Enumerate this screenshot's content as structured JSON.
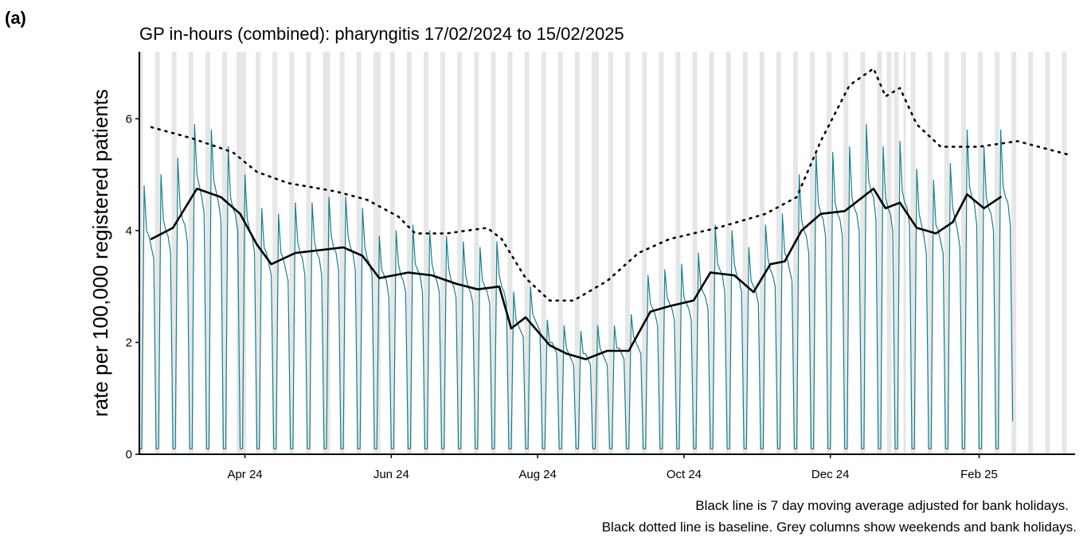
{
  "chart_data": {
    "type": "line",
    "panel_label": "(a)",
    "title": "GP in-hours (combined): pharyngitis 17/02/2024 to 15/02/2025",
    "y_label": "rate per 100,000 registered patients",
    "notes": [
      "Black line is 7 day moving average adjusted for bank holidays.",
      "Black dotted line is baseline. Grey columns show weekends and bank holidays."
    ],
    "xlim": [
      0,
      390
    ],
    "ylim": [
      0,
      7.2
    ],
    "yticks": [
      0,
      2,
      4,
      6
    ],
    "xticks": [
      {
        "value": 44,
        "label": "Apr 24"
      },
      {
        "value": 105,
        "label": "Jun 24"
      },
      {
        "value": 166,
        "label": "Aug 24"
      },
      {
        "value": 227,
        "label": "Oct 24"
      },
      {
        "value": 288,
        "label": "Dec 24"
      },
      {
        "value": 350,
        "label": "Feb 25"
      }
    ],
    "shade_color": "#e6e6e6",
    "shaded_x": [
      0,
      1,
      7,
      8,
      14,
      15,
      21,
      22,
      28,
      29,
      35,
      36,
      41,
      42,
      43,
      44,
      49,
      50,
      56,
      57,
      63,
      64,
      70,
      71,
      77,
      78,
      79,
      84,
      85,
      91,
      92,
      98,
      99,
      100,
      105,
      106,
      112,
      113,
      119,
      120,
      126,
      127,
      133,
      134,
      140,
      141,
      147,
      148,
      154,
      155,
      161,
      162,
      168,
      169,
      175,
      176,
      182,
      183,
      189,
      190,
      191,
      196,
      197,
      203,
      204,
      210,
      211,
      217,
      218,
      224,
      225,
      231,
      232,
      238,
      239,
      245,
      246,
      252,
      253,
      259,
      260,
      266,
      267,
      273,
      274,
      280,
      281,
      287,
      288,
      294,
      295,
      301,
      302,
      308,
      309,
      312,
      313,
      315,
      316,
      319,
      322,
      323,
      329,
      330,
      336,
      337,
      343,
      344,
      350,
      351,
      357,
      358,
      364,
      365,
      371,
      372,
      378,
      379,
      385,
      386
    ],
    "series": [
      {
        "color": "#137f93",
        "style": "solid",
        "x": [
          0,
          1,
          2,
          3,
          4,
          5,
          6,
          7,
          8,
          9,
          10,
          11,
          12,
          13,
          14,
          15,
          16,
          17,
          18,
          19,
          20,
          21,
          22,
          23,
          24,
          25,
          26,
          27,
          28,
          29,
          30,
          31,
          32,
          33,
          34,
          35,
          36,
          37,
          38,
          39,
          40,
          41,
          42,
          43,
          44,
          45,
          46,
          47,
          48,
          49,
          50,
          51,
          52,
          53,
          54,
          55,
          56,
          57,
          58,
          59,
          60,
          61,
          62,
          63,
          64,
          65,
          66,
          67,
          68,
          69,
          70,
          71,
          72,
          73,
          74,
          75,
          76,
          77,
          78,
          79,
          80,
          81,
          82,
          83,
          84,
          85,
          86,
          87,
          88,
          89,
          90,
          91,
          92,
          93,
          94,
          95,
          96,
          97,
          98,
          99,
          100,
          101,
          102,
          103,
          104,
          105,
          106,
          107,
          108,
          109,
          110,
          111,
          112,
          113,
          114,
          115,
          116,
          117,
          118,
          119,
          120,
          121,
          122,
          123,
          124,
          125,
          126,
          127,
          128,
          129,
          130,
          131,
          132,
          133,
          134,
          135,
          136,
          137,
          138,
          139,
          140,
          141,
          142,
          143,
          144,
          145,
          146,
          147,
          148,
          149,
          150,
          151,
          152,
          153,
          154,
          155,
          156,
          157,
          158,
          159,
          160,
          161,
          162,
          163,
          164,
          165,
          166,
          167,
          168,
          169,
          170,
          171,
          172,
          173,
          174,
          175,
          176,
          177,
          178,
          179,
          180,
          181,
          182,
          183,
          184,
          185,
          186,
          187,
          188,
          189,
          190,
          191,
          192,
          193,
          194,
          195,
          196,
          197,
          198,
          199,
          200,
          201,
          202,
          203,
          204,
          205,
          206,
          207,
          208,
          209,
          210,
          211,
          212,
          213,
          214,
          215,
          216,
          217,
          218,
          219,
          220,
          221,
          222,
          223,
          224,
          225,
          226,
          227,
          228,
          229,
          230,
          231,
          232,
          233,
          234,
          235,
          236,
          237,
          238,
          239,
          240,
          241,
          242,
          243,
          244,
          245,
          246,
          247,
          248,
          249,
          250,
          251,
          252,
          253,
          254,
          255,
          256,
          257,
          258,
          259,
          260,
          261,
          262,
          263,
          264,
          265,
          266,
          267,
          268,
          269,
          270,
          271,
          272,
          273,
          274,
          275,
          276,
          277,
          278,
          279,
          280,
          281,
          282,
          283,
          284,
          285,
          286,
          287,
          288,
          289,
          290,
          291,
          292,
          293,
          294,
          295,
          296,
          297,
          298,
          299,
          300,
          301,
          302,
          303,
          304,
          305,
          306,
          307,
          308,
          309,
          310,
          311,
          312,
          313,
          314,
          315,
          316,
          317,
          318,
          319,
          320,
          321,
          322,
          323,
          324,
          325,
          326,
          327,
          328,
          329,
          330,
          331,
          332,
          333,
          334,
          335,
          336,
          337,
          338,
          339,
          340,
          341,
          342,
          343,
          344,
          345,
          346,
          347,
          348,
          349,
          350,
          351,
          352,
          353,
          354,
          355,
          356,
          357,
          358,
          359,
          360,
          361,
          362,
          363,
          364
        ],
        "values": [
          0.1,
          0.1,
          4.8,
          4.0,
          3.9,
          3.7,
          3.5,
          0.1,
          0.1,
          5.0,
          4.2,
          4.0,
          3.9,
          3.6,
          0.1,
          0.1,
          5.3,
          4.4,
          4.2,
          4.1,
          3.8,
          0.1,
          0.1,
          5.9,
          5.0,
          4.8,
          4.6,
          4.3,
          0.1,
          0.1,
          5.8,
          4.9,
          4.7,
          4.5,
          4.2,
          0.1,
          0.1,
          5.5,
          4.6,
          4.4,
          4.3,
          4.0,
          0.1,
          0.1,
          5.0,
          4.2,
          4.0,
          3.9,
          3.6,
          0.1,
          0.1,
          4.4,
          3.7,
          3.6,
          3.4,
          3.2,
          0.1,
          0.1,
          4.3,
          3.6,
          3.5,
          3.3,
          3.1,
          0.1,
          0.1,
          4.5,
          3.8,
          3.6,
          3.5,
          3.2,
          0.1,
          0.1,
          4.5,
          3.8,
          3.6,
          3.5,
          3.2,
          0.1,
          0.1,
          4.6,
          3.9,
          3.7,
          3.6,
          3.3,
          0.1,
          0.1,
          4.6,
          3.9,
          3.7,
          3.6,
          3.3,
          0.1,
          0.1,
          4.4,
          3.7,
          3.5,
          3.4,
          3.2,
          0.1,
          0.1,
          3.9,
          3.3,
          3.2,
          3.1,
          2.8,
          0.1,
          0.1,
          4.0,
          3.4,
          3.2,
          3.1,
          2.9,
          0.1,
          0.1,
          4.1,
          3.4,
          3.3,
          3.2,
          2.9,
          0.1,
          0.1,
          4.0,
          3.4,
          3.2,
          3.1,
          2.9,
          0.1,
          0.1,
          3.9,
          3.3,
          3.1,
          3.0,
          2.8,
          0.1,
          0.1,
          3.8,
          3.2,
          3.0,
          2.9,
          2.7,
          0.1,
          0.1,
          3.7,
          3.1,
          3.0,
          2.9,
          2.7,
          0.1,
          0.1,
          3.8,
          3.2,
          3.0,
          2.9,
          2.7,
          0.1,
          0.1,
          2.9,
          2.4,
          2.3,
          2.2,
          2.1,
          0.1,
          0.1,
          3.0,
          2.5,
          2.4,
          2.3,
          2.2,
          0.1,
          0.1,
          2.4,
          2.0,
          2.0,
          1.9,
          1.8,
          0.1,
          0.1,
          2.3,
          1.9,
          1.8,
          1.7,
          1.6,
          0.1,
          0.1,
          2.2,
          1.8,
          1.8,
          1.7,
          1.6,
          0.1,
          0.1,
          2.3,
          1.9,
          1.8,
          1.7,
          1.6,
          0.1,
          0.1,
          2.3,
          1.9,
          1.9,
          1.8,
          1.7,
          0.1,
          0.1,
          2.5,
          2.1,
          2.0,
          1.9,
          1.8,
          0.1,
          0.1,
          3.2,
          2.7,
          2.6,
          2.5,
          2.3,
          0.1,
          0.1,
          3.3,
          2.8,
          2.7,
          2.6,
          2.4,
          0.1,
          0.1,
          3.4,
          2.8,
          2.7,
          2.6,
          2.4,
          0.1,
          0.1,
          3.6,
          3.0,
          2.9,
          2.8,
          2.6,
          0.1,
          0.1,
          4.1,
          3.4,
          3.3,
          3.2,
          2.9,
          0.1,
          0.1,
          4.0,
          3.4,
          3.2,
          3.1,
          2.9,
          0.1,
          0.1,
          3.7,
          3.1,
          3.0,
          2.9,
          2.7,
          0.1,
          0.1,
          4.1,
          3.5,
          3.3,
          3.2,
          3.0,
          0.1,
          0.1,
          4.3,
          3.6,
          3.5,
          3.3,
          3.1,
          0.1,
          0.1,
          5.0,
          4.2,
          4.0,
          3.9,
          3.6,
          0.1,
          0.1,
          5.4,
          4.5,
          4.3,
          4.2,
          3.9,
          0.1,
          0.1,
          5.4,
          4.5,
          4.3,
          4.2,
          3.9,
          0.1,
          0.1,
          5.5,
          4.6,
          4.4,
          4.3,
          4.0,
          0.1,
          0.1,
          5.9,
          4.9,
          4.7,
          4.6,
          4.2,
          0.1,
          0.1,
          5.5,
          4.6,
          4.4,
          4.3,
          4.0,
          0.1,
          0.1,
          5.6,
          4.7,
          4.5,
          4.4,
          4.1,
          0.1,
          0.1,
          5.1,
          4.3,
          4.1,
          3.9,
          3.6,
          0.1,
          0.1,
          4.9,
          4.1,
          4.0,
          3.8,
          3.6,
          0.1,
          0.1,
          5.2,
          4.4,
          4.2,
          4.0,
          3.7,
          0.1,
          0.1,
          5.8,
          4.8,
          4.6,
          4.5,
          4.1,
          0.1,
          0.1,
          5.5,
          4.6,
          4.4,
          4.3,
          4.0,
          0.1,
          0.1,
          5.8,
          4.8,
          4.6,
          4.5,
          4.1,
          0.6
        ]
      },
      {
        "color": "#000000",
        "style": "dotted",
        "x": [
          5,
          22,
          39,
          49,
          62,
          82,
          95,
          108,
          115,
          128,
          145,
          151,
          161,
          171,
          181,
          195,
          208,
          221,
          241,
          261,
          274,
          284,
          296,
          306,
          311,
          317,
          324,
          334,
          350,
          366,
          388
        ],
        "values": [
          5.85,
          5.65,
          5.4,
          5.05,
          4.85,
          4.7,
          4.55,
          4.25,
          3.95,
          3.95,
          4.05,
          3.85,
          3.15,
          2.75,
          2.75,
          3.1,
          3.6,
          3.85,
          4.05,
          4.3,
          4.6,
          5.6,
          6.6,
          6.9,
          6.4,
          6.55,
          5.9,
          5.5,
          5.5,
          5.6,
          5.35
        ]
      },
      {
        "color": "#000000",
        "style": "solid",
        "x": [
          5,
          14,
          24,
          34,
          42,
          49,
          55,
          65,
          75,
          85,
          93,
          100,
          112,
          122,
          132,
          141,
          150,
          155,
          161,
          171,
          178,
          186,
          195,
          204,
          213,
          221,
          231,
          238,
          248,
          256,
          263,
          269,
          276,
          284,
          294,
          306,
          311,
          317,
          324,
          332,
          339,
          345,
          352,
          359
        ],
        "values": [
          3.85,
          4.05,
          4.75,
          4.6,
          4.3,
          3.75,
          3.4,
          3.6,
          3.65,
          3.7,
          3.55,
          3.15,
          3.25,
          3.2,
          3.05,
          2.95,
          3.0,
          2.25,
          2.45,
          1.95,
          1.8,
          1.7,
          1.85,
          1.85,
          2.55,
          2.65,
          2.75,
          3.25,
          3.2,
          2.9,
          3.4,
          3.45,
          4.0,
          4.3,
          4.35,
          4.75,
          4.4,
          4.5,
          4.05,
          3.95,
          4.15,
          4.65,
          4.4,
          4.6
        ]
      }
    ]
  }
}
